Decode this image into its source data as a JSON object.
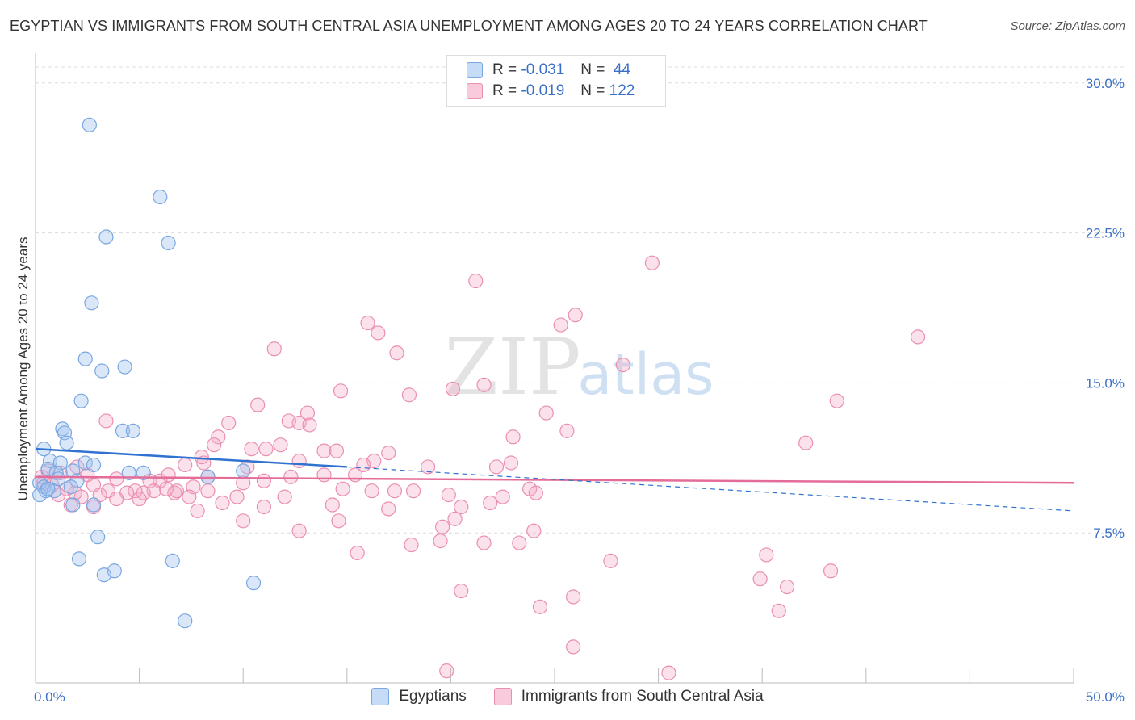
{
  "header": {
    "title": "EGYPTIAN VS IMMIGRANTS FROM SOUTH CENTRAL ASIA UNEMPLOYMENT AMONG AGES 20 TO 24 YEARS CORRELATION CHART",
    "source": "Source: ZipAtlas.com"
  },
  "legend": {
    "r_label": "R =",
    "n_label": "N =",
    "blue": {
      "r": "-0.031",
      "n": "44"
    },
    "pink": {
      "r": "-0.019",
      "n": "122"
    }
  },
  "watermark": {
    "zip": "ZIP",
    "atlas": "atlas"
  },
  "chart_data": {
    "type": "scatter",
    "title": "EGYPTIAN VS IMMIGRANTS FROM SOUTH CENTRAL ASIA UNEMPLOYMENT AMONG AGES 20 TO 24 YEARS CORRELATION CHART",
    "xlabel": "",
    "ylabel": "Unemployment Among Ages 20 to 24 years",
    "xlim": [
      0,
      50
    ],
    "ylim": [
      0,
      31
    ],
    "x_tick_labels": [
      "0.0%",
      "50.0%"
    ],
    "y_ticks": [
      7.5,
      15.0,
      22.5,
      30.0
    ],
    "y_tick_labels": [
      "7.5%",
      "15.0%",
      "22.5%",
      "30.0%"
    ],
    "grid": true,
    "colors": {
      "blue": "#7aa7e0",
      "pink": "#eb8fb0",
      "blue_line": "#2f72cf",
      "pink_line": "#e46c98"
    },
    "series": [
      {
        "name": "Egyptians",
        "r": -0.031,
        "n": 44,
        "trend": {
          "solid": [
            [
              0,
              11.7
            ],
            [
              15,
              10.8
            ]
          ],
          "dashed": [
            [
              15,
              10.8
            ],
            [
              50,
              8.6
            ]
          ]
        },
        "points": [
          [
            2.6,
            27.9
          ],
          [
            6.0,
            24.3
          ],
          [
            3.4,
            22.3
          ],
          [
            6.4,
            22.0
          ],
          [
            2.7,
            19.0
          ],
          [
            2.4,
            16.2
          ],
          [
            3.2,
            15.6
          ],
          [
            4.3,
            15.8
          ],
          [
            2.2,
            14.1
          ],
          [
            1.3,
            12.7
          ],
          [
            1.4,
            12.5
          ],
          [
            4.2,
            12.6
          ],
          [
            4.7,
            12.6
          ],
          [
            1.5,
            12.0
          ],
          [
            0.4,
            11.7
          ],
          [
            0.7,
            11.1
          ],
          [
            1.2,
            11.0
          ],
          [
            2.4,
            11.0
          ],
          [
            2.8,
            10.9
          ],
          [
            0.6,
            10.7
          ],
          [
            1.0,
            10.5
          ],
          [
            1.8,
            10.6
          ],
          [
            4.5,
            10.5
          ],
          [
            5.2,
            10.5
          ],
          [
            8.3,
            10.3
          ],
          [
            10.0,
            10.6
          ],
          [
            2.0,
            10.1
          ],
          [
            0.2,
            10.0
          ],
          [
            0.4,
            9.8
          ],
          [
            0.5,
            9.6
          ],
          [
            0.9,
            9.6
          ],
          [
            1.7,
            9.8
          ],
          [
            0.2,
            9.4
          ],
          [
            1.8,
            8.9
          ],
          [
            2.8,
            8.9
          ],
          [
            3.0,
            7.3
          ],
          [
            2.1,
            6.2
          ],
          [
            6.6,
            6.1
          ],
          [
            3.8,
            5.6
          ],
          [
            3.3,
            5.4
          ],
          [
            10.5,
            5.0
          ],
          [
            7.2,
            3.1
          ],
          [
            0.6,
            9.7
          ],
          [
            1.1,
            10.2
          ]
        ]
      },
      {
        "name": "Immigrants from South Central Asia",
        "r": -0.019,
        "n": 122,
        "trend": {
          "solid": [
            [
              0,
              10.3
            ],
            [
              50,
              10.0
            ]
          ]
        },
        "points": [
          [
            29.7,
            21.0
          ],
          [
            21.2,
            20.1
          ],
          [
            26.0,
            18.4
          ],
          [
            25.3,
            17.9
          ],
          [
            16.0,
            18.0
          ],
          [
            16.5,
            17.5
          ],
          [
            42.5,
            17.3
          ],
          [
            11.5,
            16.7
          ],
          [
            17.4,
            16.5
          ],
          [
            28.3,
            15.9
          ],
          [
            14.7,
            14.6
          ],
          [
            20.1,
            14.7
          ],
          [
            21.6,
            14.9
          ],
          [
            18.0,
            14.4
          ],
          [
            38.6,
            14.1
          ],
          [
            10.7,
            13.9
          ],
          [
            24.6,
            13.5
          ],
          [
            13.1,
            13.5
          ],
          [
            12.7,
            13.0
          ],
          [
            13.2,
            12.9
          ],
          [
            12.2,
            13.1
          ],
          [
            3.4,
            13.1
          ],
          [
            9.3,
            13.0
          ],
          [
            25.6,
            12.6
          ],
          [
            23.0,
            12.3
          ],
          [
            8.8,
            12.3
          ],
          [
            37.1,
            12.0
          ],
          [
            8.6,
            11.9
          ],
          [
            11.8,
            11.9
          ],
          [
            10.4,
            11.7
          ],
          [
            11.1,
            11.7
          ],
          [
            13.9,
            11.6
          ],
          [
            14.5,
            11.6
          ],
          [
            17.0,
            11.5
          ],
          [
            12.7,
            11.1
          ],
          [
            16.3,
            11.1
          ],
          [
            18.9,
            10.8
          ],
          [
            22.2,
            10.8
          ],
          [
            22.9,
            11.0
          ],
          [
            15.8,
            10.9
          ],
          [
            10.2,
            10.8
          ],
          [
            8.1,
            11.0
          ],
          [
            7.2,
            10.9
          ],
          [
            8.0,
            11.3
          ],
          [
            6.4,
            10.4
          ],
          [
            2.5,
            10.4
          ],
          [
            3.9,
            10.2
          ],
          [
            5.5,
            10.1
          ],
          [
            6.0,
            10.1
          ],
          [
            8.3,
            10.3
          ],
          [
            11.0,
            10.1
          ],
          [
            12.3,
            10.3
          ],
          [
            13.9,
            10.4
          ],
          [
            15.4,
            10.4
          ],
          [
            16.2,
            9.6
          ],
          [
            14.8,
            9.7
          ],
          [
            17.3,
            9.6
          ],
          [
            18.2,
            9.6
          ],
          [
            19.9,
            9.4
          ],
          [
            22.5,
            9.3
          ],
          [
            23.8,
            9.7
          ],
          [
            24.1,
            9.5
          ],
          [
            20.5,
            8.8
          ],
          [
            21.9,
            9.0
          ],
          [
            17.0,
            8.7
          ],
          [
            14.3,
            8.9
          ],
          [
            12.0,
            9.3
          ],
          [
            9.7,
            9.3
          ],
          [
            10.0,
            10.0
          ],
          [
            9.0,
            9.0
          ],
          [
            8.3,
            9.6
          ],
          [
            7.6,
            9.8
          ],
          [
            7.4,
            9.3
          ],
          [
            6.7,
            9.5
          ],
          [
            6.3,
            9.7
          ],
          [
            5.7,
            9.6
          ],
          [
            5.2,
            9.5
          ],
          [
            4.8,
            9.6
          ],
          [
            4.4,
            9.5
          ],
          [
            3.5,
            9.6
          ],
          [
            3.1,
            9.4
          ],
          [
            2.8,
            9.9
          ],
          [
            2.2,
            9.3
          ],
          [
            1.9,
            9.5
          ],
          [
            1.5,
            9.7
          ],
          [
            1.1,
            9.4
          ],
          [
            0.8,
            9.9
          ],
          [
            0.4,
            10.0
          ],
          [
            0.3,
            10.3
          ],
          [
            1.2,
            10.5
          ],
          [
            2.0,
            10.8
          ],
          [
            1.7,
            8.9
          ],
          [
            2.8,
            8.8
          ],
          [
            3.9,
            9.2
          ],
          [
            5.0,
            9.2
          ],
          [
            6.8,
            9.6
          ],
          [
            7.8,
            8.6
          ],
          [
            11.0,
            8.8
          ],
          [
            14.6,
            8.1
          ],
          [
            10.0,
            8.1
          ],
          [
            20.2,
            8.2
          ],
          [
            19.6,
            7.8
          ],
          [
            24.0,
            7.6
          ],
          [
            12.7,
            7.6
          ],
          [
            19.5,
            7.1
          ],
          [
            21.6,
            7.0
          ],
          [
            23.3,
            7.0
          ],
          [
            18.1,
            6.9
          ],
          [
            15.5,
            6.5
          ],
          [
            27.7,
            6.1
          ],
          [
            35.2,
            6.4
          ],
          [
            35.8,
            3.6
          ],
          [
            38.3,
            5.6
          ],
          [
            34.9,
            5.2
          ],
          [
            36.2,
            4.8
          ],
          [
            20.5,
            4.6
          ],
          [
            25.9,
            4.3
          ],
          [
            24.3,
            3.8
          ],
          [
            25.9,
            1.8
          ],
          [
            19.8,
            0.6
          ],
          [
            30.5,
            0.5
          ],
          [
            0.6,
            10.6
          ]
        ]
      }
    ]
  }
}
